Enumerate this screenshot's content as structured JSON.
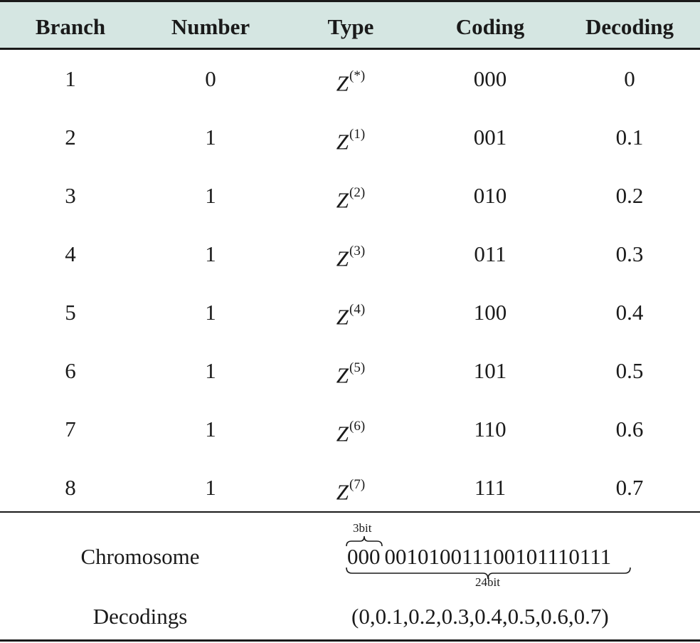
{
  "table": {
    "headers": [
      "Branch",
      "Number",
      "Type",
      "Coding",
      "Decoding"
    ],
    "rows": [
      {
        "branch": "1",
        "number": "0",
        "type_base": "Z",
        "type_sup": "(*)",
        "coding": "000",
        "decoding": "0"
      },
      {
        "branch": "2",
        "number": "1",
        "type_base": "Z",
        "type_sup": "(1)",
        "coding": "001",
        "decoding": "0.1"
      },
      {
        "branch": "3",
        "number": "1",
        "type_base": "Z",
        "type_sup": "(2)",
        "coding": "010",
        "decoding": "0.2"
      },
      {
        "branch": "4",
        "number": "1",
        "type_base": "Z",
        "type_sup": "(3)",
        "coding": "011",
        "decoding": "0.3"
      },
      {
        "branch": "5",
        "number": "1",
        "type_base": "Z",
        "type_sup": "(4)",
        "coding": "100",
        "decoding": "0.4"
      },
      {
        "branch": "6",
        "number": "1",
        "type_base": "Z",
        "type_sup": "(5)",
        "coding": "101",
        "decoding": "0.5"
      },
      {
        "branch": "7",
        "number": "1",
        "type_base": "Z",
        "type_sup": "(6)",
        "coding": "110",
        "decoding": "0.6"
      },
      {
        "branch": "8",
        "number": "1",
        "type_base": "Z",
        "type_sup": "(7)",
        "coding": "111",
        "decoding": "0.7"
      }
    ]
  },
  "summary": {
    "chromosome_label": "Chromosome",
    "chromosome_first": "000",
    "chromosome_rest": "001010011100101110111",
    "brace_top_label": "3bit",
    "brace_bottom_label": "24bit",
    "decodings_label": "Decodings",
    "decodings_value": "(0,0.1,0.2,0.3,0.4,0.5,0.6,0.7)"
  }
}
